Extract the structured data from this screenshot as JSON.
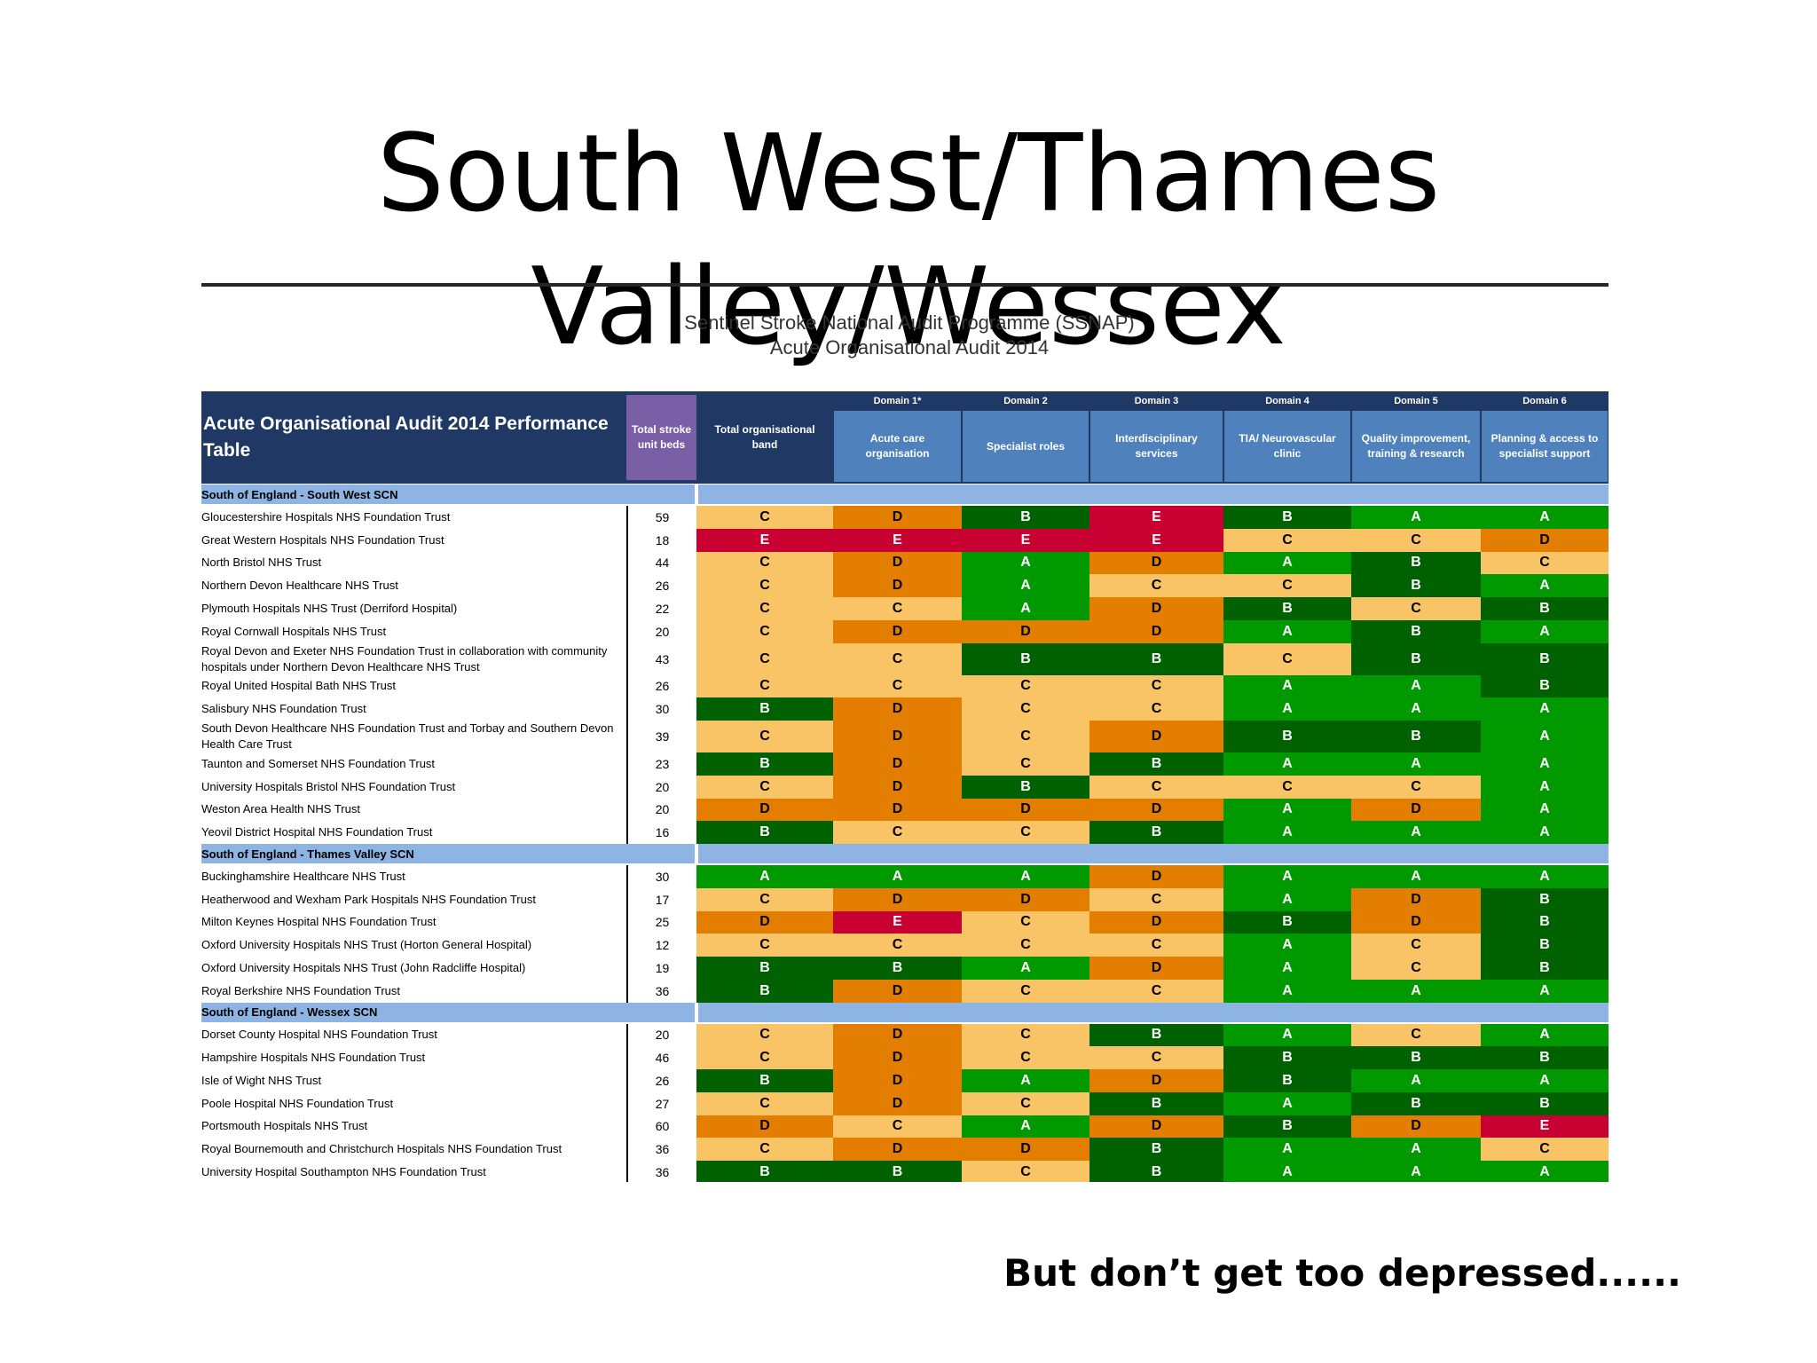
{
  "slide": {
    "title": "South West/Thames Valley/Wessex",
    "subtitle_line1": "Sentinel Stroke National Audit Programme (SSNAP)",
    "subtitle_line2": "Acute Organisational Audit 2014",
    "footer": "But don’t get too depressed......"
  },
  "table": {
    "title": "Acute Organisational Audit 2014 Performance Table",
    "beds_header": "Total stroke unit beds",
    "band_header": "Total organisational band",
    "domains": [
      {
        "label": "Domain 1*",
        "name": "Acute care organisation"
      },
      {
        "label": "Domain 2",
        "name": "Specialist roles"
      },
      {
        "label": "Domain 3",
        "name": "Interdisciplinary services"
      },
      {
        "label": "Domain 4",
        "name": "TIA/ Neurovascular clinic"
      },
      {
        "label": "Domain 5",
        "name": "Quality improvement, training & research"
      },
      {
        "label": "Domain 6",
        "name": "Planning & access to specialist support"
      }
    ],
    "grade_colors": {
      "A": "#009900",
      "B": "#006100",
      "C": "#f8c466",
      "D": "#e37e00",
      "E": "#c90032"
    },
    "sections": [
      {
        "name": "South of England - South West SCN",
        "rows": [
          {
            "name": "Gloucestershire Hospitals NHS Foundation Trust",
            "beds": "59",
            "grades": [
              "C",
              "D",
              "B",
              "E",
              "B",
              "A",
              "A"
            ]
          },
          {
            "name": "Great Western Hospitals NHS Foundation Trust",
            "beds": "18",
            "grades": [
              "E",
              "E",
              "E",
              "E",
              "C",
              "C",
              "D"
            ]
          },
          {
            "name": "North Bristol NHS Trust",
            "beds": "44",
            "grades": [
              "C",
              "D",
              "A",
              "D",
              "A",
              "B",
              "C"
            ]
          },
          {
            "name": "Northern Devon Healthcare NHS Trust",
            "beds": "26",
            "grades": [
              "C",
              "D",
              "A",
              "C",
              "C",
              "B",
              "A"
            ]
          },
          {
            "name": "Plymouth Hospitals NHS Trust (Derriford Hospital)",
            "beds": "22",
            "grades": [
              "C",
              "C",
              "A",
              "D",
              "B",
              "C",
              "B"
            ]
          },
          {
            "name": "Royal Cornwall Hospitals NHS Trust",
            "beds": "20",
            "grades": [
              "C",
              "D",
              "D",
              "D",
              "A",
              "B",
              "A"
            ]
          },
          {
            "name": "Royal Devon and Exeter NHS Foundation Trust in collaboration with community hospitals under Northern Devon Healthcare NHS Trust",
            "beds": "43",
            "grades": [
              "C",
              "C",
              "B",
              "B",
              "C",
              "B",
              "B"
            ]
          },
          {
            "name": "Royal United Hospital Bath NHS Trust",
            "beds": "26",
            "grades": [
              "C",
              "C",
              "C",
              "C",
              "A",
              "A",
              "B"
            ]
          },
          {
            "name": "Salisbury NHS Foundation Trust",
            "beds": "30",
            "grades": [
              "B",
              "D",
              "C",
              "C",
              "A",
              "A",
              "A"
            ]
          },
          {
            "name": "South Devon Healthcare NHS Foundation Trust and Torbay and Southern Devon Health Care Trust",
            "beds": "39",
            "grades": [
              "C",
              "D",
              "C",
              "D",
              "B",
              "B",
              "A"
            ]
          },
          {
            "name": "Taunton and Somerset NHS Foundation Trust",
            "beds": "23",
            "grades": [
              "B",
              "D",
              "C",
              "B",
              "A",
              "A",
              "A"
            ]
          },
          {
            "name": "University Hospitals Bristol NHS Foundation Trust",
            "beds": "20",
            "grades": [
              "C",
              "D",
              "B",
              "C",
              "C",
              "C",
              "A"
            ]
          },
          {
            "name": "Weston Area Health NHS Trust",
            "beds": "20",
            "grades": [
              "D",
              "D",
              "D",
              "D",
              "A",
              "D",
              "A"
            ]
          },
          {
            "name": "Yeovil District Hospital NHS Foundation Trust",
            "beds": "16",
            "grades": [
              "B",
              "C",
              "C",
              "B",
              "A",
              "A",
              "A"
            ]
          }
        ]
      },
      {
        "name": "South of England - Thames Valley SCN",
        "rows": [
          {
            "name": "Buckinghamshire Healthcare NHS Trust",
            "beds": "30",
            "grades": [
              "A",
              "A",
              "A",
              "D",
              "A",
              "A",
              "A"
            ]
          },
          {
            "name": "Heatherwood and Wexham Park Hospitals NHS Foundation Trust",
            "beds": "17",
            "grades": [
              "C",
              "D",
              "D",
              "C",
              "A",
              "D",
              "B"
            ]
          },
          {
            "name": "Milton Keynes Hospital NHS Foundation Trust",
            "beds": "25",
            "grades": [
              "D",
              "E",
              "C",
              "D",
              "B",
              "D",
              "B"
            ]
          },
          {
            "name": "Oxford University Hospitals NHS Trust (Horton General Hospital)",
            "beds": "12",
            "grades": [
              "C",
              "C",
              "C",
              "C",
              "A",
              "C",
              "B"
            ]
          },
          {
            "name": "Oxford University Hospitals NHS Trust (John Radcliffe Hospital)",
            "beds": "19",
            "grades": [
              "B",
              "B",
              "A",
              "D",
              "A",
              "C",
              "B"
            ]
          },
          {
            "name": "Royal Berkshire NHS Foundation Trust",
            "beds": "36",
            "grades": [
              "B",
              "D",
              "C",
              "C",
              "A",
              "A",
              "A"
            ]
          }
        ]
      },
      {
        "name": "South of England - Wessex SCN",
        "rows": [
          {
            "name": "Dorset County Hospital NHS Foundation Trust",
            "beds": "20",
            "grades": [
              "C",
              "D",
              "C",
              "B",
              "A",
              "C",
              "A"
            ]
          },
          {
            "name": "Hampshire Hospitals NHS Foundation Trust",
            "beds": "46",
            "grades": [
              "C",
              "D",
              "C",
              "C",
              "B",
              "B",
              "B"
            ]
          },
          {
            "name": "Isle of Wight NHS Trust",
            "beds": "26",
            "grades": [
              "B",
              "D",
              "A",
              "D",
              "B",
              "A",
              "A"
            ]
          },
          {
            "name": "Poole Hospital NHS Foundation Trust",
            "beds": "27",
            "grades": [
              "C",
              "D",
              "C",
              "B",
              "A",
              "B",
              "B"
            ]
          },
          {
            "name": "Portsmouth Hospitals NHS Trust",
            "beds": "60",
            "grades": [
              "D",
              "C",
              "A",
              "D",
              "B",
              "D",
              "E"
            ]
          },
          {
            "name": "Royal Bournemouth and Christchurch Hospitals NHS Foundation Trust",
            "beds": "36",
            "grades": [
              "C",
              "D",
              "D",
              "B",
              "A",
              "A",
              "C"
            ]
          },
          {
            "name": "University Hospital Southampton NHS Foundation Trust",
            "beds": "36",
            "grades": [
              "B",
              "B",
              "C",
              "B",
              "A",
              "A",
              "A"
            ]
          }
        ]
      }
    ]
  }
}
